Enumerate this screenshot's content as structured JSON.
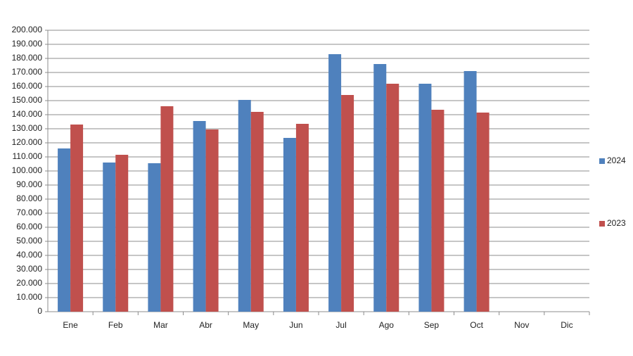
{
  "chart_data": {
    "type": "bar",
    "categories": [
      "Ene",
      "Feb",
      "Mar",
      "Abr",
      "May",
      "Jun",
      "Jul",
      "Ago",
      "Sep",
      "Oct",
      "Nov",
      "Dic"
    ],
    "series": [
      {
        "name": "2024",
        "color": "#4f81bd",
        "values": [
          116000,
          106000,
          105500,
          135500,
          150500,
          123500,
          183000,
          176000,
          162000,
          171000,
          null,
          null
        ]
      },
      {
        "name": "2023",
        "color": "#c0504d",
        "values": [
          133000,
          111500,
          146000,
          129500,
          142000,
          133500,
          154000,
          162000,
          143500,
          141500,
          null,
          null
        ]
      }
    ],
    "ylim": [
      0,
      200000
    ],
    "yticks": [
      0,
      {
        "value": 10000,
        "label": "10.000"
      },
      {
        "value": 20000,
        "label": "20.000"
      },
      {
        "value": 30000,
        "label": "30.000"
      },
      {
        "value": 40000,
        "label": "40.000"
      },
      {
        "value": 50000,
        "label": "50.000"
      },
      {
        "value": 60000,
        "label": "60.000"
      },
      {
        "value": 70000,
        "label": "70.000"
      },
      {
        "value": 80000,
        "label": "80.000"
      },
      {
        "value": 90000,
        "label": "90.000"
      },
      {
        "value": 100000,
        "label": "100.000"
      },
      {
        "value": 110000,
        "label": "110.000"
      },
      {
        "value": 120000,
        "label": "120.000"
      },
      {
        "value": 130000,
        "label": "130.000"
      },
      {
        "value": 140000,
        "label": "140.000"
      },
      {
        "value": 150000,
        "label": "150.000"
      },
      {
        "value": 160000,
        "label": "160.000"
      },
      {
        "value": 170000,
        "label": "170.000"
      },
      {
        "value": 180000,
        "label": "180.000"
      },
      {
        "value": 190000,
        "label": "190.000"
      },
      {
        "value": 200000,
        "label": "200.000"
      }
    ],
    "grid": true,
    "legend": "right"
  }
}
